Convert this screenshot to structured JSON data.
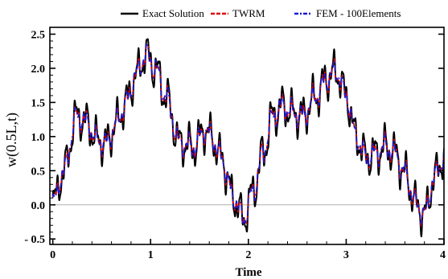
{
  "chart_data": {
    "type": "line",
    "xlabel": "Time",
    "ylabel": "w(0.5L,t)",
    "xlim": [
      -0.03,
      4.0
    ],
    "ylim": [
      -0.58,
      2.6
    ],
    "x_ticks": [
      {
        "value": 0,
        "label": "0"
      },
      {
        "value": 1,
        "label": "1"
      },
      {
        "value": 2,
        "label": "2"
      },
      {
        "value": 3,
        "label": "3"
      },
      {
        "value": 4,
        "label": "4"
      }
    ],
    "y_ticks": [
      {
        "value": -0.5,
        "label": "- 0.5"
      },
      {
        "value": 0.0,
        "label": "0.0"
      },
      {
        "value": 0.5,
        "label": "0.5"
      },
      {
        "value": 1.0,
        "label": "1.0"
      },
      {
        "value": 1.5,
        "label": "1.5"
      },
      {
        "value": 2.0,
        "label": "2.0"
      },
      {
        "value": 2.5,
        "label": "2.5"
      }
    ],
    "zero_line": true,
    "grid": false,
    "legend_position": "top",
    "series": [
      {
        "name": "Exact Solution",
        "color": "#000000",
        "style": "solid",
        "wiggle": 0.38
      },
      {
        "name": "TWRM",
        "color": "#e00000",
        "style": "dashed",
        "wiggle": 0.24
      },
      {
        "name": "FEM - 100Elements",
        "color": "#1a1ad0",
        "style": "dashdot",
        "wiggle": 0.22
      }
    ],
    "envelope_points": [
      [
        0.0,
        0.0
      ],
      [
        0.1,
        0.45
      ],
      [
        0.25,
        1.3
      ],
      [
        0.35,
        1.2
      ],
      [
        0.45,
        0.95
      ],
      [
        0.55,
        0.9
      ],
      [
        0.65,
        1.2
      ],
      [
        0.75,
        1.5
      ],
      [
        0.85,
        1.9
      ],
      [
        0.95,
        2.2
      ],
      [
        1.05,
        2.0
      ],
      [
        1.15,
        1.6
      ],
      [
        1.3,
        0.9
      ],
      [
        1.45,
        0.85
      ],
      [
        1.55,
        1.1
      ],
      [
        1.62,
        1.0
      ],
      [
        1.72,
        0.7
      ],
      [
        1.85,
        0.1
      ],
      [
        1.95,
        -0.2
      ],
      [
        2.05,
        0.2
      ],
      [
        2.15,
        0.75
      ],
      [
        2.25,
        1.3
      ],
      [
        2.35,
        1.45
      ],
      [
        2.45,
        1.35
      ],
      [
        2.55,
        1.3
      ],
      [
        2.7,
        1.6
      ],
      [
        2.8,
        1.85
      ],
      [
        2.9,
        1.95
      ],
      [
        3.0,
        1.6
      ],
      [
        3.1,
        1.0
      ],
      [
        3.2,
        0.7
      ],
      [
        3.3,
        0.75
      ],
      [
        3.4,
        0.85
      ],
      [
        3.5,
        0.75
      ],
      [
        3.6,
        0.45
      ],
      [
        3.72,
        0.0
      ],
      [
        3.8,
        -0.15
      ],
      [
        3.9,
        0.4
      ],
      [
        4.0,
        0.7
      ]
    ]
  }
}
